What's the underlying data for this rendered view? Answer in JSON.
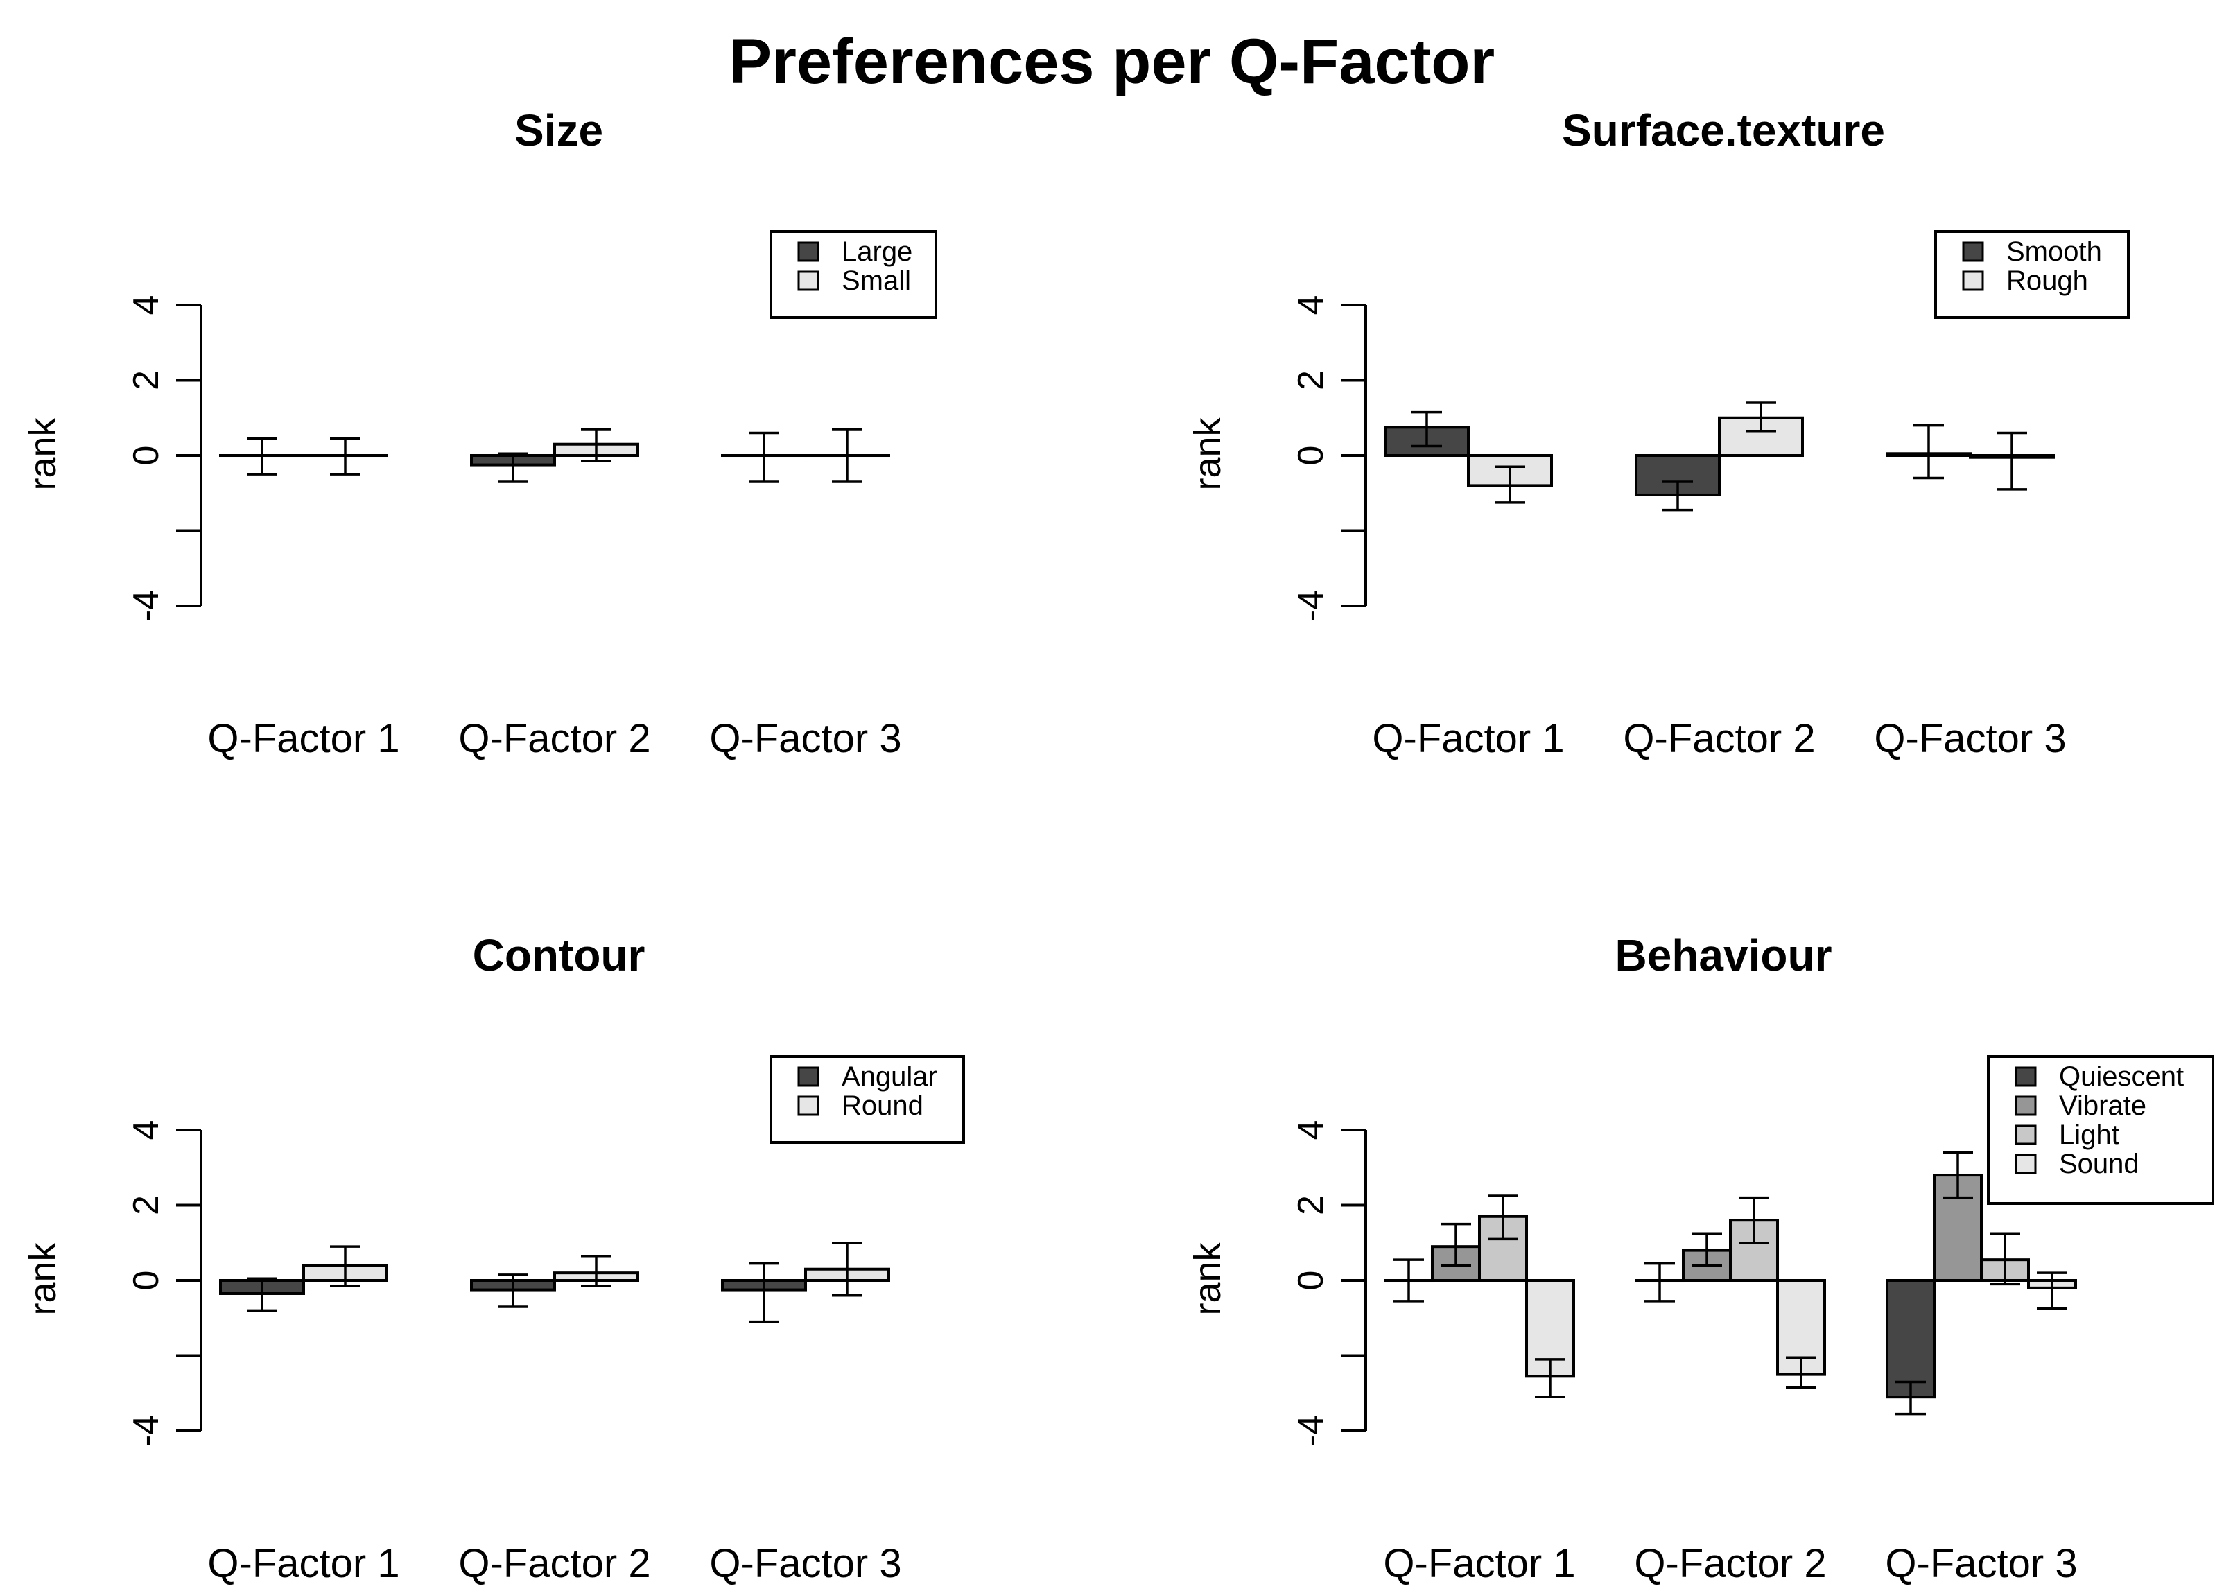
{
  "main_title": "Preferences per Q-Factor",
  "chart_data": [
    {
      "type": "bar",
      "title": "Size",
      "ylabel": "rank",
      "xlabel": "",
      "ylim": [
        -4,
        4
      ],
      "yticks": [
        "-4",
        "",
        "0",
        "2",
        "4"
      ],
      "categories": [
        "Q-Factor 1",
        "Q-Factor 2",
        "Q-Factor 3"
      ],
      "series": [
        {
          "name": "Large",
          "color": "#464646",
          "values": [
            0.0,
            -0.25,
            0.0
          ],
          "err_low": [
            -0.5,
            -0.7,
            -0.7
          ],
          "err_high": [
            0.45,
            0.05,
            0.6
          ]
        },
        {
          "name": "Small",
          "color": "#e6e6e6",
          "values": [
            0.0,
            0.3,
            0.0
          ],
          "err_low": [
            -0.5,
            -0.15,
            -0.7
          ],
          "err_high": [
            0.45,
            0.7,
            0.7
          ]
        }
      ],
      "legend_position": "top-right"
    },
    {
      "type": "bar",
      "title": "Surface.texture",
      "ylabel": "rank",
      "xlabel": "",
      "ylim": [
        -4,
        4
      ],
      "yticks": [
        "-4",
        "",
        "0",
        "2",
        "4"
      ],
      "categories": [
        "Q-Factor 1",
        "Q-Factor 2",
        "Q-Factor 3"
      ],
      "series": [
        {
          "name": "Smooth",
          "color": "#464646",
          "values": [
            0.75,
            -1.05,
            0.05
          ],
          "err_low": [
            0.25,
            -1.45,
            -0.6
          ],
          "err_high": [
            1.15,
            -0.7,
            0.8
          ]
        },
        {
          "name": "Rough",
          "color": "#e6e6e6",
          "values": [
            -0.8,
            1.0,
            -0.05
          ],
          "err_low": [
            -1.25,
            0.65,
            -0.9
          ],
          "err_high": [
            -0.3,
            1.4,
            0.6
          ]
        }
      ],
      "legend_position": "top-right"
    },
    {
      "type": "bar",
      "title": "Contour",
      "ylabel": "rank",
      "xlabel": "",
      "ylim": [
        -4,
        4
      ],
      "yticks": [
        "-4",
        "",
        "0",
        "2",
        "4"
      ],
      "categories": [
        "Q-Factor 1",
        "Q-Factor 2",
        "Q-Factor 3"
      ],
      "series": [
        {
          "name": "Angular",
          "color": "#464646",
          "values": [
            -0.35,
            -0.25,
            -0.25
          ],
          "err_low": [
            -0.8,
            -0.7,
            -1.1
          ],
          "err_high": [
            0.05,
            0.15,
            0.45
          ]
        },
        {
          "name": "Round",
          "color": "#e6e6e6",
          "values": [
            0.4,
            0.2,
            0.3
          ],
          "err_low": [
            -0.15,
            -0.15,
            -0.4
          ],
          "err_high": [
            0.9,
            0.65,
            1.0
          ]
        }
      ],
      "legend_position": "top-right"
    },
    {
      "type": "bar",
      "title": "Behaviour",
      "ylabel": "rank",
      "xlabel": "",
      "ylim": [
        -4,
        4
      ],
      "yticks": [
        "-4",
        "",
        "0",
        "2",
        "4"
      ],
      "categories": [
        "Q-Factor 1",
        "Q-Factor 2",
        "Q-Factor 3"
      ],
      "series": [
        {
          "name": "Quiescent",
          "color": "#464646",
          "values": [
            0.0,
            0.0,
            -3.1
          ],
          "err_low": [
            -0.55,
            -0.55,
            -3.55
          ],
          "err_high": [
            0.55,
            0.45,
            -2.7
          ]
        },
        {
          "name": "Vibrate",
          "color": "#969696",
          "values": [
            0.9,
            0.8,
            2.8
          ],
          "err_low": [
            0.4,
            0.4,
            2.2
          ],
          "err_high": [
            1.5,
            1.25,
            3.4
          ]
        },
        {
          "name": "Light",
          "color": "#c8c8c8",
          "values": [
            1.7,
            1.6,
            0.55
          ],
          "err_low": [
            1.1,
            1.0,
            -0.1
          ],
          "err_high": [
            2.25,
            2.2,
            1.25
          ]
        },
        {
          "name": "Sound",
          "color": "#e6e6e6",
          "values": [
            -2.55,
            -2.5,
            -0.2
          ],
          "err_low": [
            -3.1,
            -2.85,
            -0.75
          ],
          "err_high": [
            -2.1,
            -2.05,
            0.2
          ]
        }
      ],
      "legend_position": "top-right"
    }
  ]
}
